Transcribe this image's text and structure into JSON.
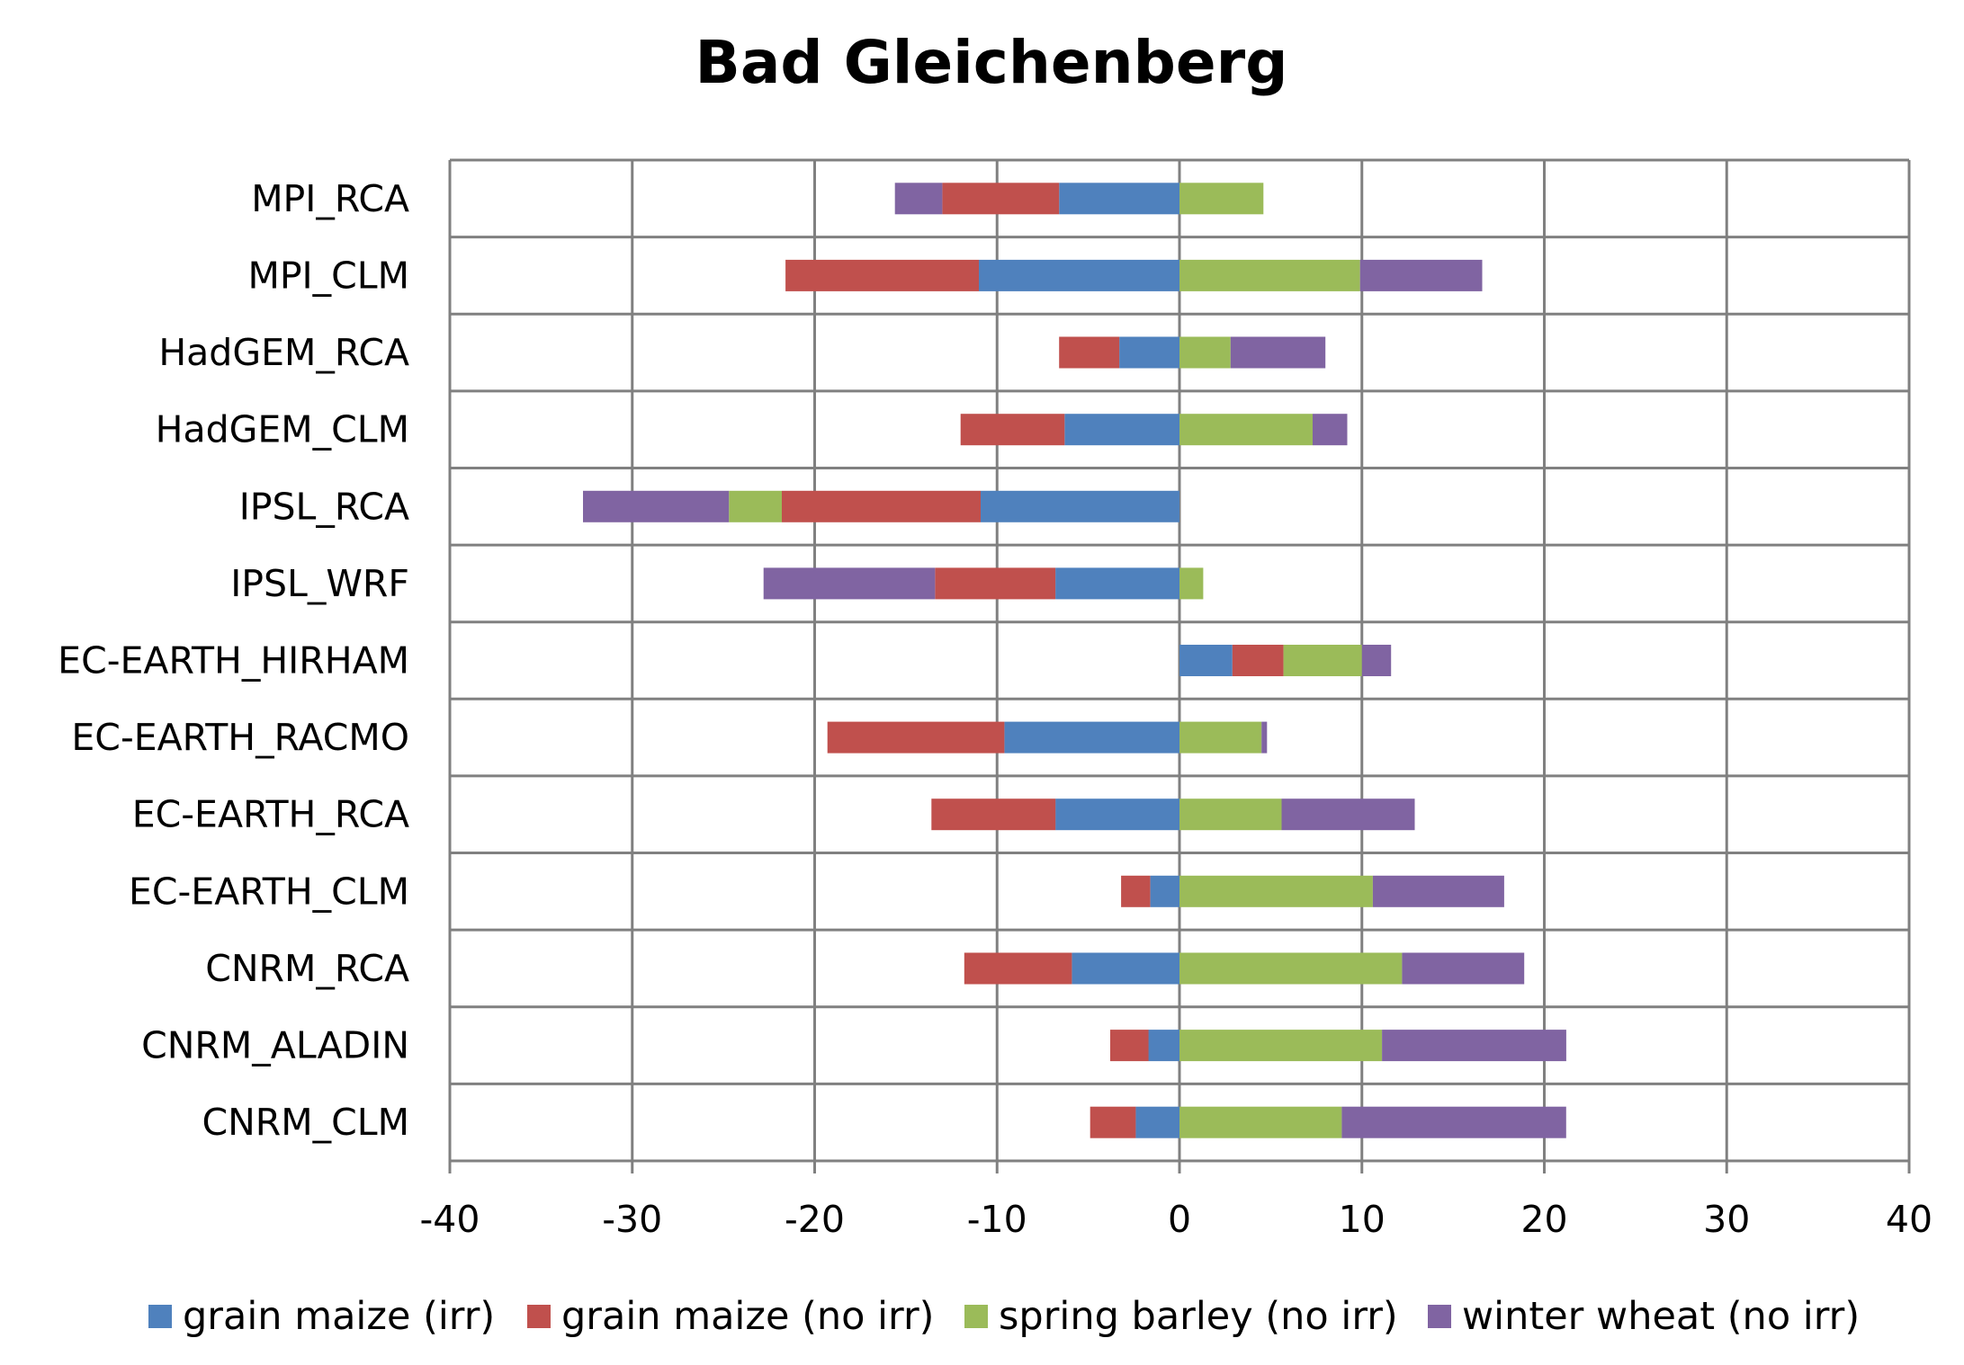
{
  "chart_data": {
    "type": "bar",
    "orientation": "horizontal",
    "stacked": "diverging",
    "title": "Bad Gleichenberg",
    "xlabel": "",
    "ylabel": "",
    "xlim": [
      -40,
      40
    ],
    "xticks": [
      -40,
      -30,
      -20,
      -10,
      0,
      10,
      20,
      30,
      40
    ],
    "grid": true,
    "legend_position": "bottom",
    "categories": [
      "MPI_RCA",
      "MPI_CLM",
      "HadGEM_RCA",
      "HadGEM_CLM",
      "IPSL_RCA",
      "IPSL_WRF",
      "EC-EARTH_HIRHAM",
      "EC-EARTH_RACMO",
      "EC-EARTH_RCA",
      "EC-EARTH_CLM",
      "CNRM_RCA",
      "CNRM_ALADIN",
      "CNRM_CLM"
    ],
    "series": [
      {
        "name": "grain maize (irr)",
        "color": "#4F81BD",
        "values": [
          -6.6,
          -11.0,
          -3.3,
          -6.3,
          -10.9,
          -6.8,
          2.9,
          -9.6,
          -6.8,
          -1.6,
          -5.9,
          -1.7,
          -2.4
        ]
      },
      {
        "name": "grain maize (no irr)",
        "color": "#C0504D",
        "values": [
          -6.4,
          -10.6,
          -3.3,
          -5.7,
          -10.9,
          -6.6,
          2.8,
          -9.7,
          -6.8,
          -1.6,
          -5.9,
          -2.1,
          -2.5
        ]
      },
      {
        "name": "spring barley (no irr)",
        "color": "#9BBB59",
        "values": [
          4.6,
          9.9,
          2.8,
          7.3,
          -2.9,
          1.3,
          4.3,
          4.5,
          5.6,
          10.6,
          12.2,
          11.1,
          8.9
        ]
      },
      {
        "name": "winter wheat (no irr)",
        "color": "#8064A2",
        "values": [
          -2.6,
          6.7,
          5.2,
          1.9,
          -8.0,
          -9.4,
          1.6,
          0.3,
          7.3,
          7.2,
          6.7,
          10.1,
          12.3
        ]
      }
    ]
  }
}
